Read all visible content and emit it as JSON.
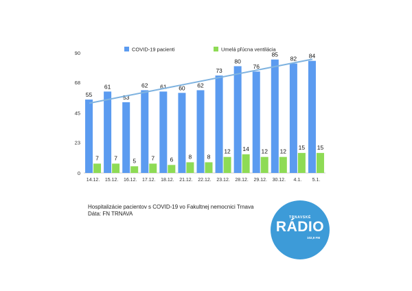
{
  "chart_data": {
    "type": "bar",
    "categories": [
      "14.12.",
      "15.12.",
      "16.12.",
      "17.12.",
      "18.12.",
      "21.12.",
      "22.12.",
      "23.12.",
      "28.12.",
      "29.12.",
      "30.12.",
      "4.1.",
      "5.1."
    ],
    "series": [
      {
        "name": "COVID-19 pacienti",
        "values": [
          55,
          61,
          53,
          62,
          61,
          60,
          62,
          73,
          80,
          76,
          85,
          82,
          84
        ],
        "color": "#5b9bf0"
      },
      {
        "name": "Umelá pľúcna ventilácia",
        "values": [
          7,
          7,
          5,
          7,
          6,
          8,
          8,
          12,
          14,
          12,
          12,
          15,
          15
        ],
        "color": "#8edb55"
      }
    ],
    "trendline": {
      "series": "COVID-19 pacienti",
      "color": "#7fb3e0"
    },
    "yticks": [
      0,
      23,
      45,
      68,
      90
    ],
    "ylim": [
      0,
      90
    ],
    "legend_position": "top",
    "grid": false
  },
  "caption": {
    "line1": "Hospitalizácie pacientov s COVID-19 vo Fakultnej nemocnici Trnava",
    "line2": "Dáta: FN TRNAVA"
  },
  "logo": {
    "top": "TRNAVSKÉ",
    "main": "RÁDIO",
    "sub": "102,9 FM"
  }
}
